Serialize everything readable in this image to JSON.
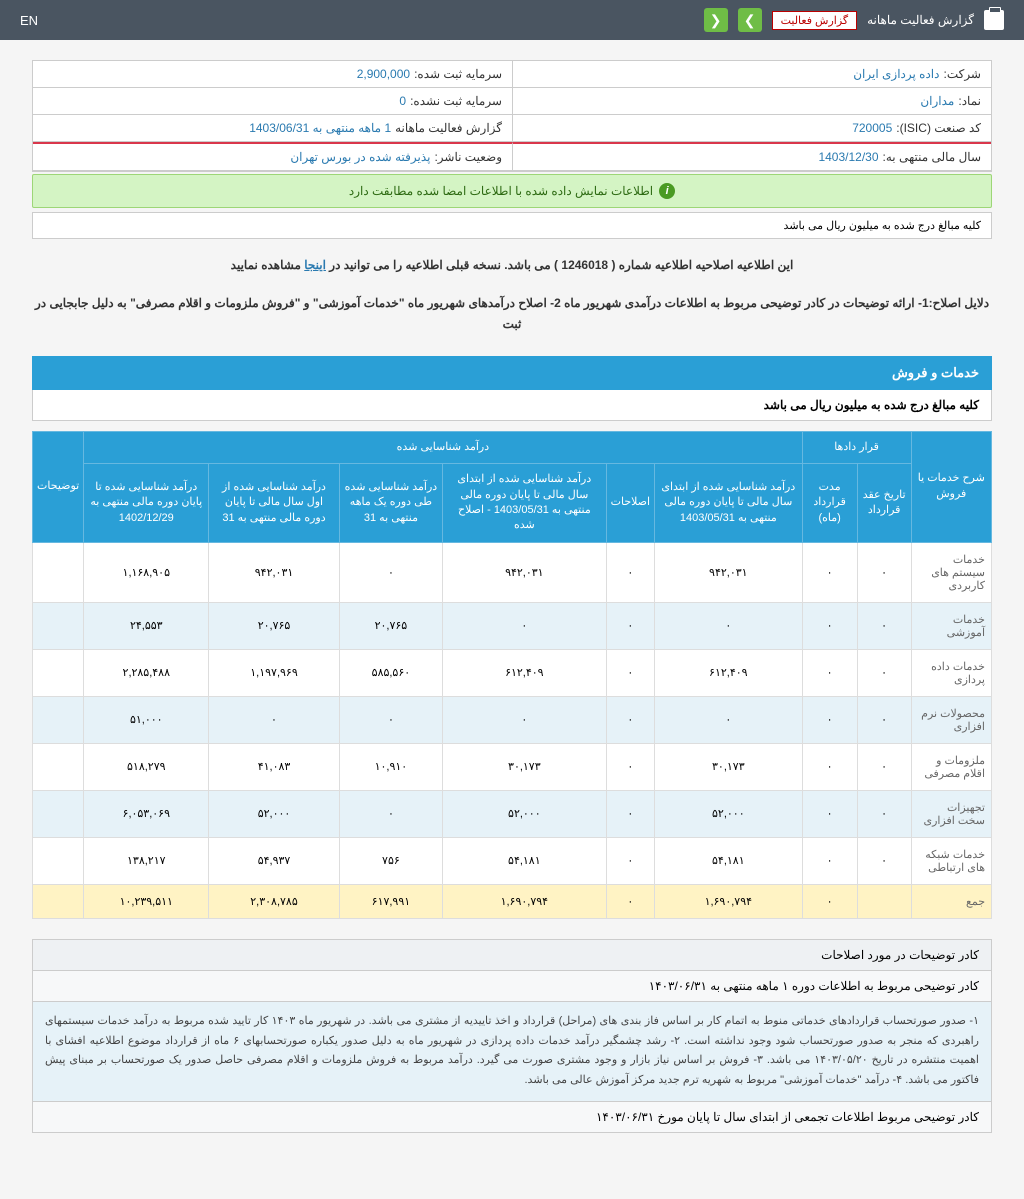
{
  "topbar": {
    "title": "گزارش فعالیت ماهانه",
    "select_label": "گزارش فعالیت",
    "en": "EN"
  },
  "info": {
    "company_label": "شرکت:",
    "company_value": "داده پردازی ایران",
    "capital_reg_label": "سرمایه ثبت شده:",
    "capital_reg_value": "2,900,000",
    "symbol_label": "نماد:",
    "symbol_value": "مداران",
    "capital_unreg_label": "سرمایه ثبت نشده:",
    "capital_unreg_value": "0",
    "isic_label": "کد صنعت (ISIC):",
    "isic_value": "720005",
    "report_label": "گزارش فعالیت ماهانه",
    "report_value": "1 ماهه منتهی به 1403/06/31",
    "fy_label": "سال مالی منتهی به:",
    "fy_value": "1403/12/30",
    "status_label": "وضعیت ناشر:",
    "status_value": "پذیرفته شده در بورس تهران"
  },
  "alert": "اطلاعات نمایش داده شده با اطلاعات امضا شده مطابقت دارد",
  "note": "کلیه مبالغ درج شده به میلیون ریال می باشد",
  "desc1_a": "این اطلاعیه اصلاحیه اطلاعیه شماره ( 1246018 ) می باشد. نسخه قبلی اطلاعیه را می توانید در ",
  "desc1_link": "اینجا",
  "desc1_b": " مشاهده نمایید",
  "desc2": "دلایل اصلاح:1- ارائه توضیحات در کادر توضیحی مربوط به اطلاعات درآمدی شهریور ماه 2- اصلاح درآمدهای شهریور ماه \"خدمات آموزشی\" و \"فروش ملزومات و اقلام مصرفی\" به دلیل جابجایی در ثبت",
  "section": {
    "title": "خدمات و فروش",
    "sub": "کلیه مبالغ درج شده به میلیون ریال می باشد"
  },
  "thead": {
    "group1": "شرح خدمات یا فروش",
    "group2": "قرار دادها",
    "group3": "درآمد شناسایی شده",
    "group4": "توضیحات",
    "c_date": "تاریخ عقد قرارداد",
    "c_dur": "مدت قرارداد (ماه)",
    "c_inc1": "درآمد شناسایی شده از ابتدای سال مالی تا پایان دوره مالی منتهی به 1403/05/31",
    "c_adj": "اصلاحات",
    "c_inc2": "درآمد شناسایی شده از ابتدای سال مالی تا پایان دوره مالی منتهی به 1403/05/31 - اصلاح شده",
    "c_inc3": "درآمد شناسایی شده طی دوره یک ماهه منتهی به 31",
    "c_inc4": "درآمد شناسایی شده از اول سال مالی تا پایان دوره مالی منتهی به 31",
    "c_inc5": "درآمد شناسایی شده تا پایان دوره مالی منتهی به 1402/12/29"
  },
  "rows": [
    {
      "label": "خدمات سیستم های کاربردی",
      "v": [
        "۰",
        "۰",
        "۹۴۲,۰۳۱",
        "۰",
        "۹۴۲,۰۳۱",
        "۰",
        "۹۴۲,۰۳۱",
        "۱,۱۶۸,۹۰۵"
      ]
    },
    {
      "label": "خدمات آموزشی",
      "v": [
        "۰",
        "۰",
        "۰",
        "۰",
        "۰",
        "۲۰,۷۶۵",
        "۲۰,۷۶۵",
        "۲۴,۵۵۳"
      ]
    },
    {
      "label": "خدمات داده پردازی",
      "v": [
        "۰",
        "۰",
        "۶۱۲,۴۰۹",
        "۰",
        "۶۱۲,۴۰۹",
        "۵۸۵,۵۶۰",
        "۱,۱۹۷,۹۶۹",
        "۲,۲۸۵,۴۸۸"
      ]
    },
    {
      "label": "محصولات نرم افزاری",
      "v": [
        "۰",
        "۰",
        "۰",
        "۰",
        "۰",
        "۰",
        "۰",
        "۵۱,۰۰۰"
      ]
    },
    {
      "label": "ملزومات و اقلام مصرفی",
      "v": [
        "۰",
        "۰",
        "۳۰,۱۷۳",
        "۰",
        "۳۰,۱۷۳",
        "۱۰,۹۱۰",
        "۴۱,۰۸۳",
        "۵۱۸,۲۷۹"
      ]
    },
    {
      "label": "تجهیزات سخت افزاری",
      "v": [
        "۰",
        "۰",
        "۵۲,۰۰۰",
        "۰",
        "۵۲,۰۰۰",
        "۰",
        "۵۲,۰۰۰",
        "۶,۰۵۳,۰۶۹"
      ]
    },
    {
      "label": "خدمات شبکه های ارتباطی",
      "v": [
        "۰",
        "۰",
        "۵۴,۱۸۱",
        "۰",
        "۵۴,۱۸۱",
        "۷۵۶",
        "۵۴,۹۳۷",
        "۱۳۸,۲۱۷"
      ]
    }
  ],
  "total": {
    "label": "جمع",
    "v": [
      "",
      "۰",
      "۱,۶۹۰,۷۹۴",
      "۰",
      "۱,۶۹۰,۷۹۴",
      "۶۱۷,۹۹۱",
      "۲,۳۰۸,۷۸۵",
      "۱۰,۲۳۹,۵۱۱"
    ]
  },
  "exp": {
    "h1": "کادر توضیحات در مورد اصلاحات",
    "h2": "کادر توضیحی مربوط به اطلاعات دوره ۱ ماهه منتهی به ۱۴۰۳/۰۶/۳۱",
    "body": "۱- صدور صورتحساب قراردادهای خدماتی منوط به اتمام کار بر اساس فاز بندی های (مراحل) قرارداد و اخذ تاییدیه از مشتری می باشد. در شهریور ماه ۱۴۰۳ کار تایید شده مربوط به درآمد خدمات سیستمهای راهبردی که منجر به صدور صورتحساب شود وجود نداشته است. ۲- رشد چشمگیر درآمد خدمات داده پردازی در شهریور ماه به دلیل صدور یکباره صورتحسابهای ۶ ماه از قرارداد موضوع اطلاعیه افشای با اهمیت منتشره در تاریخ ۱۴۰۳/۰۵/۲۰ می باشد. ۳- فروش بر اساس نیاز بازار و وجود مشتری صورت می گیرد. درآمد مربوط به فروش ملزومات و اقلام مصرفی حاصل صدور یک صورتحساب بر مبنای پیش فاکتور می باشد. ۴- درآمد \"خدمات آموزشی\" مربوط به شهریه ترم جدید مرکز آموزش عالی می باشد.",
    "h3": "کادر توضیحی مربوط اطلاعات تجمعی از ابتدای سال تا پایان مورخ ۱۴۰۳/۰۶/۳۱"
  }
}
